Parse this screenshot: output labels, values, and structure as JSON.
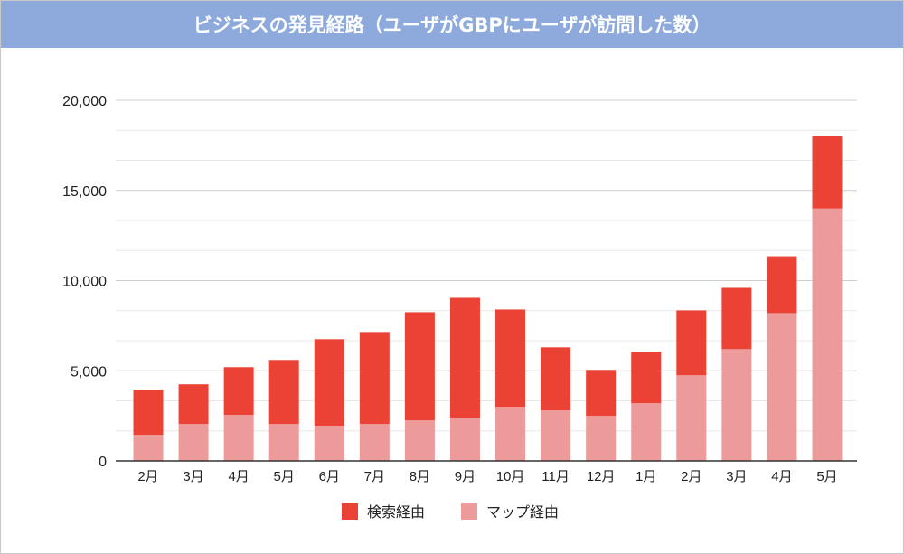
{
  "chart_data": {
    "type": "bar",
    "stacked": true,
    "title": "ビジネスの発見経路（ユーザがGBPにユーザが訪問した数）",
    "categories": [
      "2月",
      "3月",
      "4月",
      "5月",
      "6月",
      "7月",
      "8月",
      "9月",
      "10月",
      "11月",
      "12月",
      "1月",
      "2月",
      "3月",
      "4月",
      "5月"
    ],
    "series": [
      {
        "name": "マップ経由",
        "color": "#ec9a9a",
        "values": [
          1450,
          2050,
          2550,
          2050,
          1950,
          2050,
          2250,
          2400,
          3000,
          2800,
          2500,
          3200,
          4750,
          6200,
          8200,
          14000
        ]
      },
      {
        "name": "検索経由",
        "color": "#ea4335",
        "values": [
          2500,
          2200,
          2650,
          3550,
          4800,
          5100,
          6000,
          6650,
          5400,
          3500,
          2550,
          2850,
          3600,
          3400,
          3150,
          4000
        ]
      }
    ],
    "legend_order": [
      "検索経由",
      "マップ経由"
    ],
    "ylim": [
      0,
      20000
    ],
    "yticks": [
      0,
      5000,
      10000,
      15000,
      20000
    ],
    "ytick_labels": [
      "0",
      "5,000",
      "10,000",
      "15,000",
      "20,000"
    ],
    "grid": true,
    "legend_position": "bottom",
    "header_color": "#8eaadc"
  }
}
